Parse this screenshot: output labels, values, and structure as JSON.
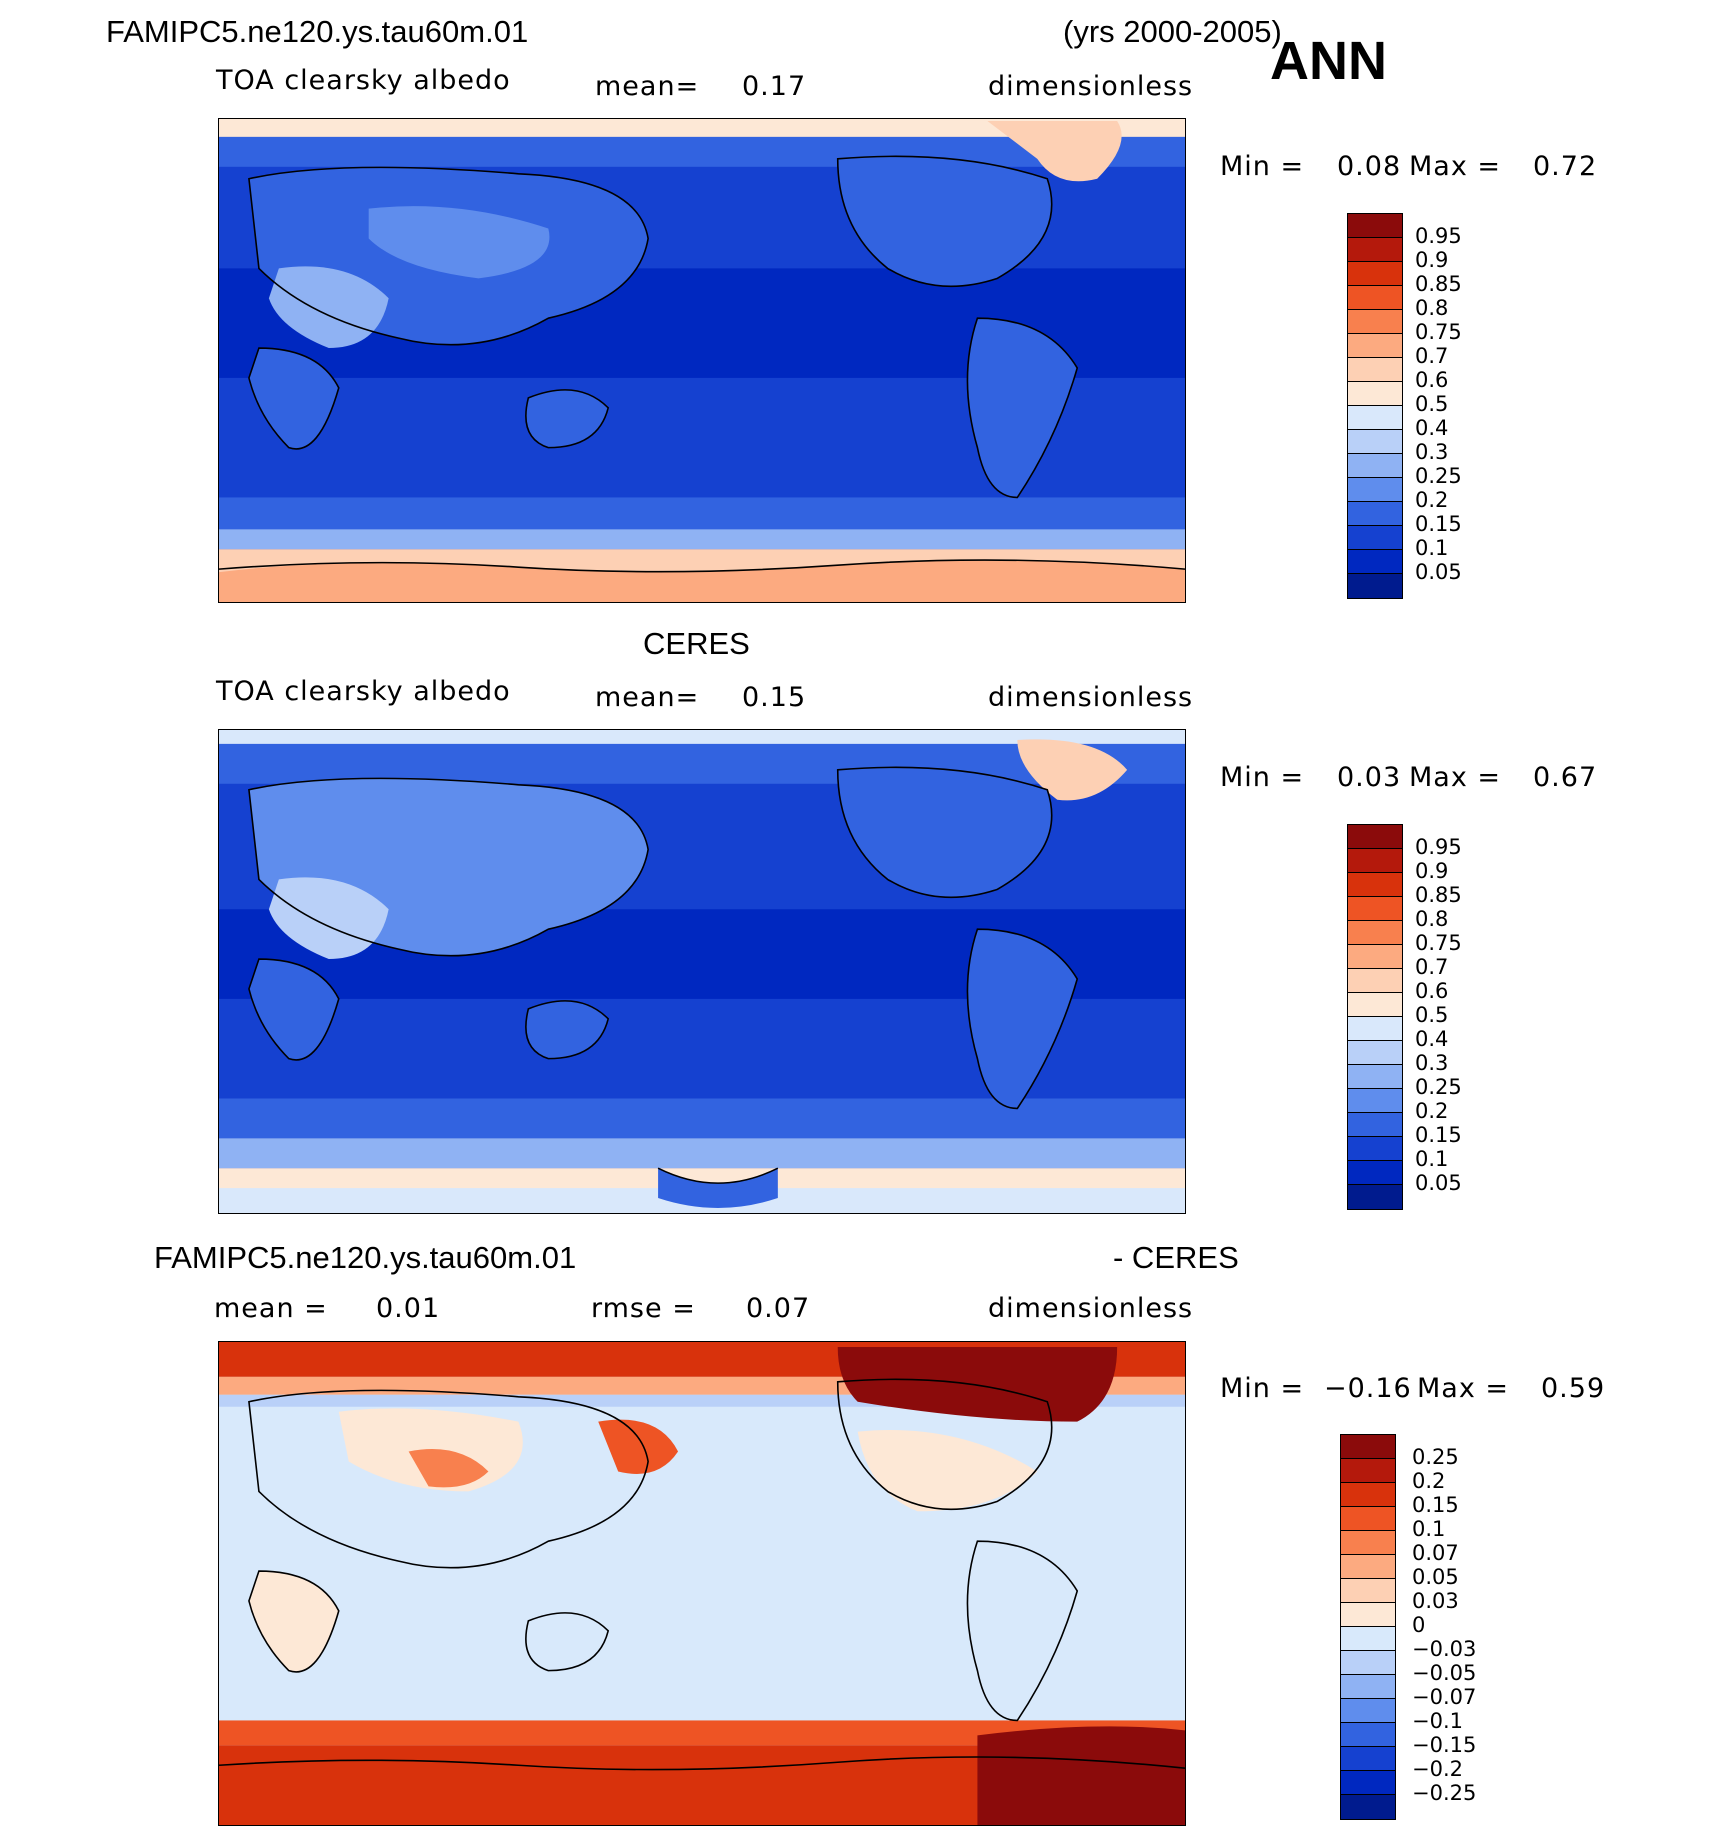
{
  "header": {
    "case_name": "FAMIPC5.ne120.ys.tau60m.01",
    "years": "(yrs 2000-2005)",
    "season": "ANN"
  },
  "panels": [
    {
      "title": "",
      "variable": "TOA clearsky albedo",
      "mean_label": "mean=",
      "mean": "0.17",
      "units": "dimensionless",
      "min_label": "Min =",
      "min": "0.08",
      "max_label": "Max =",
      "max": "0.72",
      "colorbar_levels": [
        "0.95",
        "0.9",
        "0.85",
        "0.8",
        "0.75",
        "0.7",
        "0.6",
        "0.5",
        "0.4",
        "0.3",
        "0.25",
        "0.2",
        "0.15",
        "0.1",
        "0.05"
      ]
    },
    {
      "title": "CERES",
      "variable": "TOA clearsky albedo",
      "mean_label": "mean=",
      "mean": "0.15",
      "units": "dimensionless",
      "min_label": "Min =",
      "min": "0.03",
      "max_label": "Max =",
      "max": "0.67",
      "colorbar_levels": [
        "0.95",
        "0.9",
        "0.85",
        "0.8",
        "0.75",
        "0.7",
        "0.6",
        "0.5",
        "0.4",
        "0.3",
        "0.25",
        "0.2",
        "0.15",
        "0.1",
        "0.05"
      ]
    },
    {
      "title_left": "FAMIPC5.ne120.ys.tau60m.01",
      "title_right": "- CERES",
      "mean_label": "mean =",
      "mean": "0.01",
      "rmse_label": "rmse =",
      "rmse": "0.07",
      "units": "dimensionless",
      "min_label": "Min =",
      "min": "−0.16",
      "max_label": "Max =",
      "max": "0.59",
      "colorbar_levels": [
        "0.25",
        "0.2",
        "0.15",
        "0.1",
        "0.07",
        "0.05",
        "0.03",
        "0",
        "−0.03",
        "−0.05",
        "−0.07",
        "−0.1",
        "−0.15",
        "−0.2",
        "−0.25"
      ]
    }
  ],
  "colors": {
    "albedo_scale": [
      "#8b0b0b",
      "#b4190c",
      "#d8320c",
      "#ee5424",
      "#f8804e",
      "#fcaa80",
      "#fdd0b4",
      "#fde8d6",
      "#d9e8fb",
      "#b9d0f8",
      "#8fb2f3",
      "#5f8ded",
      "#3263e0",
      "#1541d0",
      "#0028c0",
      "#001b8e"
    ],
    "diff_scale": [
      "#8b0b0b",
      "#b4190c",
      "#d8320c",
      "#ee5424",
      "#f8804e",
      "#fcaa80",
      "#fdd0b4",
      "#fde8d6",
      "#d8e9fb",
      "#b9d0f8",
      "#8fb2f3",
      "#5f8ded",
      "#3263e0",
      "#1541d0",
      "#0028c0",
      "#001b8e"
    ]
  }
}
